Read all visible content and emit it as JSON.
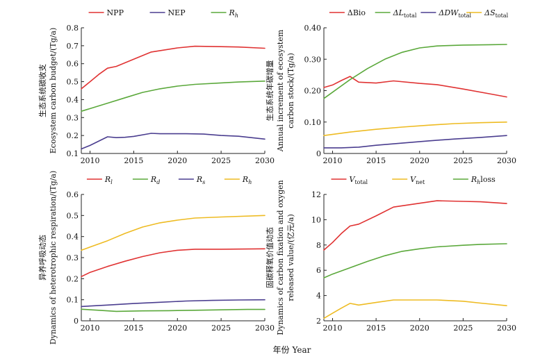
{
  "figure": {
    "xlabel": "年份 Year"
  },
  "chart_data": [
    {
      "type": "line",
      "panel": "top-left",
      "ylabel_lines": [
        "生态系统碳收支",
        "Ecosystem carbon budget/(Tg/a)"
      ],
      "xlim": [
        2009,
        2030
      ],
      "ylim": [
        0.1,
        0.8
      ],
      "xticks": [
        2010,
        2015,
        2020,
        2025,
        2030
      ],
      "yticks": [
        0.1,
        0.2,
        0.3,
        0.4,
        0.5,
        0.6,
        0.7,
        0.8
      ],
      "ytick_labels": [
        "0.1",
        "0.2",
        "0.3",
        "0.4",
        "0.5",
        "0.6",
        "0.7",
        "0.8"
      ],
      "legend_position": "top",
      "series": [
        {
          "name_main": "NPP",
          "name_sub": "",
          "name_italic": false,
          "color": "#e03232",
          "x": [
            2009,
            2010,
            2011,
            2012,
            2013,
            2015,
            2017,
            2020,
            2022,
            2025,
            2027,
            2030
          ],
          "y": [
            0.46,
            0.5,
            0.54,
            0.575,
            0.585,
            0.625,
            0.665,
            0.688,
            0.697,
            0.695,
            0.693,
            0.686
          ]
        },
        {
          "name_main": "NEP",
          "name_sub": "",
          "name_italic": false,
          "color": "#4a3d8f",
          "x": [
            2009,
            2010,
            2012,
            2013,
            2014,
            2015,
            2017,
            2018,
            2020,
            2021,
            2023,
            2025,
            2027,
            2030
          ],
          "y": [
            0.125,
            0.145,
            0.193,
            0.188,
            0.19,
            0.195,
            0.212,
            0.21,
            0.21,
            0.21,
            0.208,
            0.2,
            0.196,
            0.18
          ]
        },
        {
          "name_main": "R",
          "name_sub": "h",
          "name_italic": true,
          "color": "#5aa83a",
          "x": [
            2009,
            2010,
            2012,
            2014,
            2016,
            2018,
            2020,
            2022,
            2025,
            2027,
            2030
          ],
          "y": [
            0.335,
            0.35,
            0.38,
            0.41,
            0.44,
            0.46,
            0.475,
            0.485,
            0.493,
            0.498,
            0.503
          ]
        }
      ]
    },
    {
      "type": "line",
      "panel": "top-right",
      "ylabel_lines": [
        "生态系统年碳增量",
        "Annual increment of ecosystem",
        "carbon stock/(Tg/a)"
      ],
      "xlim": [
        2009,
        2030
      ],
      "ylim": [
        0,
        0.4
      ],
      "xticks": [
        2010,
        2015,
        2020,
        2025,
        2030
      ],
      "yticks": [
        0,
        0.1,
        0.2,
        0.3,
        0.4
      ],
      "ytick_labels": [
        "0",
        "0.10",
        "0.20",
        "0.30",
        "0.40"
      ],
      "legend_position": "top",
      "series": [
        {
          "name_main": "ΔBio",
          "name_sub": "",
          "name_italic": false,
          "color": "#e03232",
          "x": [
            2009,
            2010,
            2011,
            2012,
            2013,
            2015,
            2017,
            2020,
            2022,
            2025,
            2028,
            2030
          ],
          "y": [
            0.21,
            0.218,
            0.232,
            0.245,
            0.227,
            0.224,
            0.231,
            0.223,
            0.219,
            0.205,
            0.19,
            0.18
          ]
        },
        {
          "name_main": "ΔL",
          "name_sub": "total",
          "name_italic": true,
          "color": "#5aa83a",
          "x": [
            2009,
            2010,
            2012,
            2014,
            2016,
            2018,
            2020,
            2022,
            2025,
            2028,
            2030
          ],
          "y": [
            0.175,
            0.195,
            0.235,
            0.27,
            0.3,
            0.322,
            0.336,
            0.342,
            0.345,
            0.346,
            0.347
          ]
        },
        {
          "name_main": "ΔDW",
          "name_sub": "total",
          "name_italic": true,
          "color": "#4a3d8f",
          "x": [
            2009,
            2011,
            2013,
            2015,
            2018,
            2021,
            2024,
            2027,
            2030
          ],
          "y": [
            0.018,
            0.018,
            0.02,
            0.026,
            0.033,
            0.04,
            0.046,
            0.051,
            0.057
          ]
        },
        {
          "name_main": "ΔS",
          "name_sub": "total",
          "name_italic": true,
          "color": "#eebb22",
          "x": [
            2009,
            2012,
            2015,
            2018,
            2021,
            2024,
            2027,
            2030
          ],
          "y": [
            0.057,
            0.068,
            0.077,
            0.084,
            0.09,
            0.095,
            0.098,
            0.1
          ]
        }
      ]
    },
    {
      "type": "line",
      "panel": "bottom-left",
      "ylabel_lines": [
        "异养呼吸动态",
        "Dynamics of heterotrophic respiration/(Tg/a)"
      ],
      "xlim": [
        2009,
        2030
      ],
      "ylim": [
        0,
        0.6
      ],
      "xticks": [
        2010,
        2015,
        2020,
        2025,
        2030
      ],
      "yticks": [
        0,
        0.1,
        0.2,
        0.3,
        0.4,
        0.5,
        0.6
      ],
      "ytick_labels": [
        "0",
        "0.1",
        "0.2",
        "0.3",
        "0.4",
        "0.5",
        "0.6"
      ],
      "legend_position": "top",
      "series": [
        {
          "name_main": "R",
          "name_sub": "l",
          "name_italic": true,
          "color": "#e03232",
          "x": [
            2009,
            2010,
            2012,
            2014,
            2016,
            2018,
            2020,
            2022,
            2025,
            2030
          ],
          "y": [
            0.21,
            0.23,
            0.258,
            0.283,
            0.305,
            0.323,
            0.335,
            0.34,
            0.34,
            0.342
          ]
        },
        {
          "name_main": "R",
          "name_sub": "d",
          "name_italic": true,
          "color": "#5aa83a",
          "x": [
            2009,
            2011,
            2013,
            2016,
            2019,
            2022,
            2025,
            2028,
            2030
          ],
          "y": [
            0.055,
            0.05,
            0.045,
            0.047,
            0.048,
            0.05,
            0.052,
            0.054,
            0.054
          ]
        },
        {
          "name_main": "R",
          "name_sub": "s",
          "name_italic": true,
          "color": "#4a3d8f",
          "x": [
            2009,
            2012,
            2015,
            2018,
            2021,
            2024,
            2027,
            2030
          ],
          "y": [
            0.068,
            0.075,
            0.082,
            0.088,
            0.094,
            0.097,
            0.099,
            0.1
          ]
        },
        {
          "name_main": "R",
          "name_sub": "h",
          "name_italic": true,
          "color": "#eebb22",
          "x": [
            2009,
            2010,
            2012,
            2014,
            2016,
            2018,
            2020,
            2022,
            2025,
            2030
          ],
          "y": [
            0.335,
            0.35,
            0.38,
            0.415,
            0.445,
            0.465,
            0.478,
            0.488,
            0.493,
            0.5
          ]
        }
      ]
    },
    {
      "type": "line",
      "panel": "bottom-right",
      "ylabel_lines": [
        "固碳释氧价值动态",
        "Dynamics of carbon fixation and oxygen",
        "released value/(亿元/a)"
      ],
      "xlim": [
        2009,
        2030
      ],
      "ylim": [
        2,
        12
      ],
      "xticks": [
        2010,
        2015,
        2020,
        2025,
        2030
      ],
      "yticks": [
        2,
        4,
        6,
        8,
        10,
        12
      ],
      "ytick_labels": [
        "2",
        "4",
        "6",
        "8",
        "10",
        "12"
      ],
      "legend_position": "top",
      "series": [
        {
          "name_main": "V",
          "name_sub": "total",
          "name_italic": true,
          "color": "#e03232",
          "x": [
            2009,
            2010,
            2011,
            2012,
            2013,
            2015,
            2017,
            2020,
            2022,
            2025,
            2027,
            2030
          ],
          "y": [
            7.6,
            8.2,
            8.9,
            9.5,
            9.65,
            10.3,
            11.0,
            11.3,
            11.5,
            11.45,
            11.42,
            11.28
          ]
        },
        {
          "name_main": "V",
          "name_sub": "net",
          "name_italic": true,
          "color": "#eebb22",
          "x": [
            2009,
            2010,
            2011,
            2012,
            2013,
            2015,
            2017,
            2020,
            2022,
            2025,
            2027,
            2030
          ],
          "y": [
            2.2,
            2.6,
            3.0,
            3.38,
            3.25,
            3.45,
            3.65,
            3.65,
            3.65,
            3.55,
            3.4,
            3.2
          ]
        },
        {
          "name_main": "R",
          "name_sub": "h",
          "name_suffix": "loss",
          "name_italic": true,
          "color": "#5aa83a",
          "x": [
            2009,
            2010,
            2012,
            2014,
            2016,
            2018,
            2020,
            2022,
            2025,
            2027,
            2030
          ],
          "y": [
            5.4,
            5.7,
            6.2,
            6.7,
            7.15,
            7.5,
            7.7,
            7.85,
            7.98,
            8.05,
            8.1
          ]
        }
      ]
    }
  ]
}
